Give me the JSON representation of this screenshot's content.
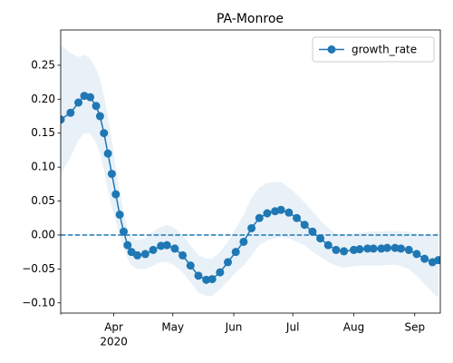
{
  "chart_data": {
    "type": "line",
    "title": "PA-Monroe",
    "x": [
      "2020-03-05",
      "2020-03-10",
      "2020-03-14",
      "2020-03-17",
      "2020-03-20",
      "2020-03-23",
      "2020-03-25",
      "2020-03-27",
      "2020-03-29",
      "2020-03-31",
      "2020-04-02",
      "2020-04-04",
      "2020-04-06",
      "2020-04-08",
      "2020-04-10",
      "2020-04-13",
      "2020-04-17",
      "2020-04-21",
      "2020-04-25",
      "2020-04-28",
      "2020-05-02",
      "2020-05-06",
      "2020-05-10",
      "2020-05-14",
      "2020-05-18",
      "2020-05-21",
      "2020-05-25",
      "2020-05-29",
      "2020-06-02",
      "2020-06-06",
      "2020-06-10",
      "2020-06-14",
      "2020-06-18",
      "2020-06-22",
      "2020-06-25",
      "2020-06-29",
      "2020-07-03",
      "2020-07-07",
      "2020-07-11",
      "2020-07-15",
      "2020-07-19",
      "2020-07-23",
      "2020-07-27",
      "2020-08-01",
      "2020-08-04",
      "2020-08-08",
      "2020-08-11",
      "2020-08-15",
      "2020-08-18",
      "2020-08-22",
      "2020-08-25",
      "2020-08-29",
      "2020-09-02",
      "2020-09-06",
      "2020-09-10",
      "2020-09-13"
    ],
    "series": [
      {
        "name": "growth_rate",
        "color": "#1f77b4",
        "values": [
          0.17,
          0.18,
          0.195,
          0.205,
          0.203,
          0.19,
          0.175,
          0.15,
          0.12,
          0.09,
          0.06,
          0.03,
          0.005,
          -0.015,
          -0.025,
          -0.03,
          -0.028,
          -0.022,
          -0.016,
          -0.015,
          -0.02,
          -0.03,
          -0.045,
          -0.06,
          -0.066,
          -0.065,
          -0.055,
          -0.04,
          -0.025,
          -0.01,
          0.01,
          0.025,
          0.032,
          0.035,
          0.037,
          0.033,
          0.025,
          0.015,
          0.005,
          -0.005,
          -0.015,
          -0.022,
          -0.024,
          -0.022,
          -0.021,
          -0.02,
          -0.02,
          -0.02,
          -0.019,
          -0.019,
          -0.02,
          -0.022,
          -0.028,
          -0.035,
          -0.04,
          -0.037
        ]
      }
    ],
    "band": {
      "color": "#1f77b4",
      "lower": [
        0.09,
        0.115,
        0.14,
        0.15,
        0.15,
        0.135,
        0.12,
        0.095,
        0.065,
        0.04,
        0.02,
        0.0,
        -0.02,
        -0.035,
        -0.045,
        -0.05,
        -0.05,
        -0.045,
        -0.04,
        -0.04,
        -0.045,
        -0.055,
        -0.07,
        -0.085,
        -0.09,
        -0.09,
        -0.08,
        -0.068,
        -0.055,
        -0.045,
        -0.03,
        -0.015,
        -0.008,
        -0.005,
        -0.003,
        -0.005,
        -0.01,
        -0.015,
        -0.025,
        -0.032,
        -0.04,
        -0.045,
        -0.048,
        -0.046,
        -0.045,
        -0.045,
        -0.045,
        -0.045,
        -0.044,
        -0.044,
        -0.046,
        -0.05,
        -0.06,
        -0.072,
        -0.085,
        -0.092
      ],
      "upper": [
        0.28,
        0.268,
        0.262,
        0.265,
        0.26,
        0.245,
        0.23,
        0.205,
        0.175,
        0.14,
        0.1,
        0.065,
        0.035,
        0.01,
        -0.002,
        -0.008,
        -0.005,
        0.005,
        0.012,
        0.015,
        0.01,
        0.0,
        -0.015,
        -0.03,
        -0.035,
        -0.035,
        -0.025,
        -0.01,
        0.01,
        0.03,
        0.055,
        0.07,
        0.077,
        0.078,
        0.078,
        0.07,
        0.06,
        0.048,
        0.035,
        0.022,
        0.01,
        0.002,
        0.0,
        0.002,
        0.003,
        0.005,
        0.005,
        0.005,
        0.006,
        0.006,
        0.005,
        0.005,
        0.002,
        0.0,
        0.0,
        0.005
      ]
    },
    "hline": 0,
    "xlim": [
      "2020-03-05",
      "2020-09-14"
    ],
    "xticks": [
      {
        "value": "2020-04-01",
        "label": "Apr"
      },
      {
        "value": "2020-05-01",
        "label": "May"
      },
      {
        "value": "2020-06-01",
        "label": "Jun"
      },
      {
        "value": "2020-07-01",
        "label": "Jul"
      },
      {
        "value": "2020-08-01",
        "label": "Aug"
      },
      {
        "value": "2020-09-01",
        "label": "Sep"
      }
    ],
    "x_year_label": "2020",
    "ylim": [
      -0.115,
      0.302
    ],
    "yticks": [
      {
        "value": -0.1,
        "label": "−0.10"
      },
      {
        "value": -0.05,
        "label": "−0.05"
      },
      {
        "value": 0,
        "label": "0.00"
      },
      {
        "value": 0.05,
        "label": "0.05"
      },
      {
        "value": 0.1,
        "label": "0.10"
      },
      {
        "value": 0.15,
        "label": "0.15"
      },
      {
        "value": 0.2,
        "label": "0.20"
      },
      {
        "value": 0.25,
        "label": "0.25"
      }
    ],
    "legend": "upper right"
  }
}
